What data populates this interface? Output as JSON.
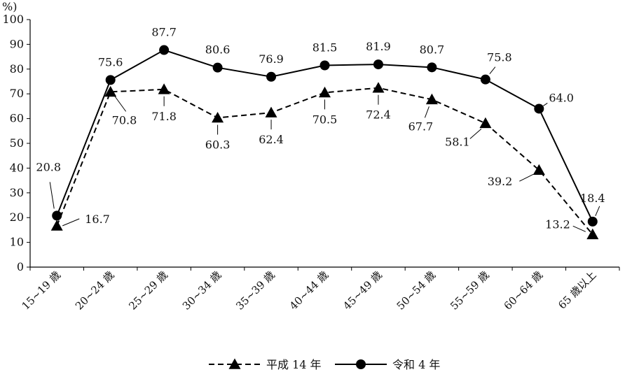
{
  "chart_data": {
    "type": "line",
    "ylabel": "%)",
    "ylim": [
      0,
      100
    ],
    "yticks": [
      0,
      10,
      20,
      30,
      40,
      50,
      60,
      70,
      80,
      90,
      100
    ],
    "grid": false,
    "legend_position": "bottom",
    "categories": [
      "15~19 歳",
      "20~24 歳",
      "25~29 歳",
      "30~34 歳",
      "35~39 歳",
      "40~44 歳",
      "45~49 歳",
      "50~54 歳",
      "55~59 歳",
      "60~64 歳",
      "65 歳以上"
    ],
    "series": [
      {
        "name": "平成 14 年",
        "values": [
          16.7,
          70.8,
          71.8,
          60.3,
          62.4,
          70.5,
          72.4,
          67.7,
          58.1,
          39.2,
          13.2
        ],
        "labels": [
          "16.7",
          "70.8",
          "71.8",
          "60.3",
          "62.4",
          "70.5",
          "72.4",
          "67.7",
          "58.1",
          "39.2",
          "13.2"
        ],
        "line_style": "dashed",
        "marker": "triangle",
        "color": "#000000"
      },
      {
        "name": "令和 4 年",
        "values": [
          20.8,
          75.6,
          87.7,
          80.6,
          76.9,
          81.5,
          81.9,
          80.7,
          75.8,
          64.0,
          18.4
        ],
        "labels": [
          "20.8",
          "75.6",
          "87.7",
          "80.6",
          "76.9",
          "81.5",
          "81.9",
          "80.7",
          "75.8",
          "64.0",
          "18.4"
        ],
        "line_style": "solid",
        "marker": "circle",
        "color": "#000000"
      }
    ]
  }
}
